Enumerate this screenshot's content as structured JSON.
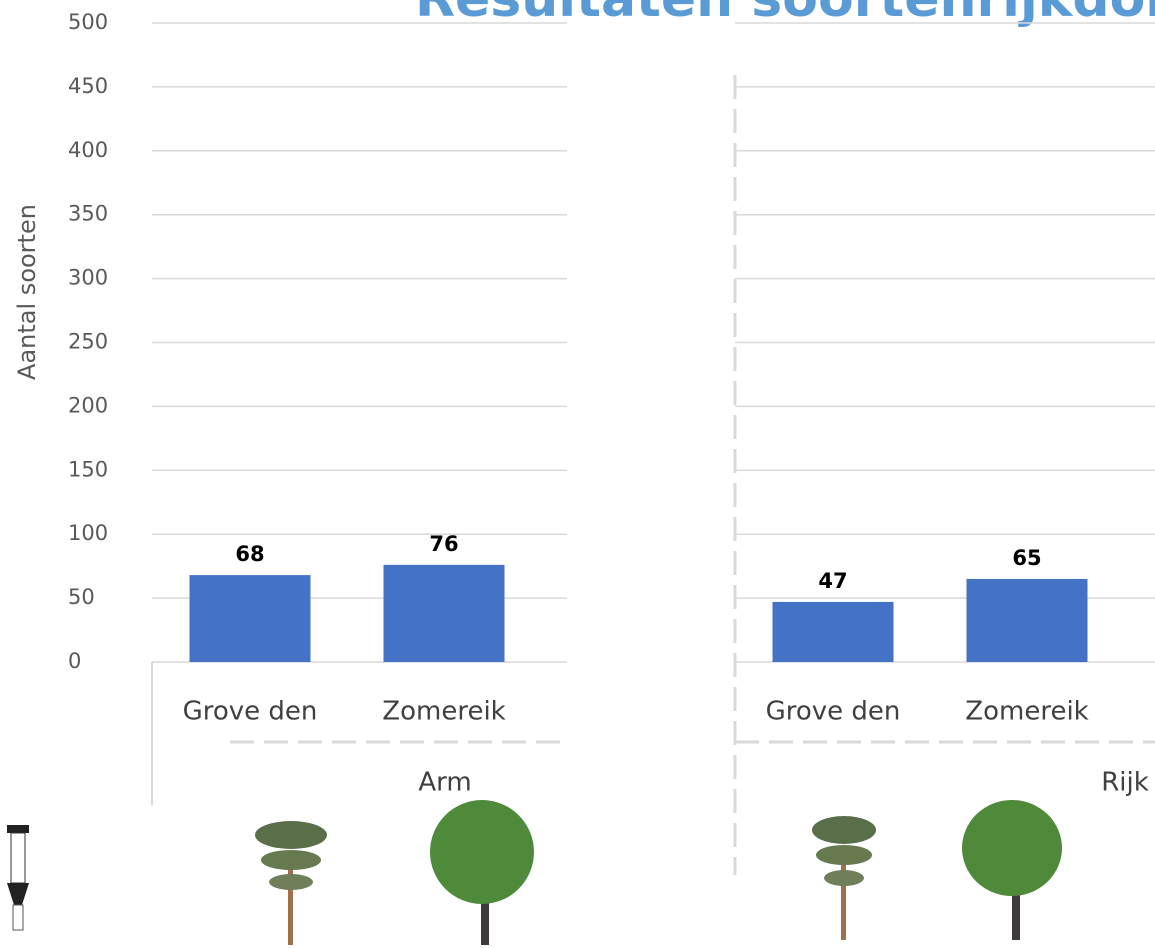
{
  "chart_data": {
    "type": "bar",
    "title": "Resultaten soortenrijkdom",
    "ylabel": "Aantal soorten",
    "ylim": [
      0,
      500
    ],
    "yticks": [
      0,
      50,
      100,
      150,
      200,
      250,
      300,
      350,
      400,
      450,
      500
    ],
    "grid": true,
    "color": "#4472c4",
    "groups": [
      {
        "name": "Arm",
        "categories": [
          "Grove den",
          "Zomereik"
        ],
        "values": [
          68,
          76
        ]
      },
      {
        "name": "Rijk",
        "categories": [
          "Grove den",
          "Zomereik"
        ],
        "values": [
          47,
          65
        ]
      }
    ]
  }
}
